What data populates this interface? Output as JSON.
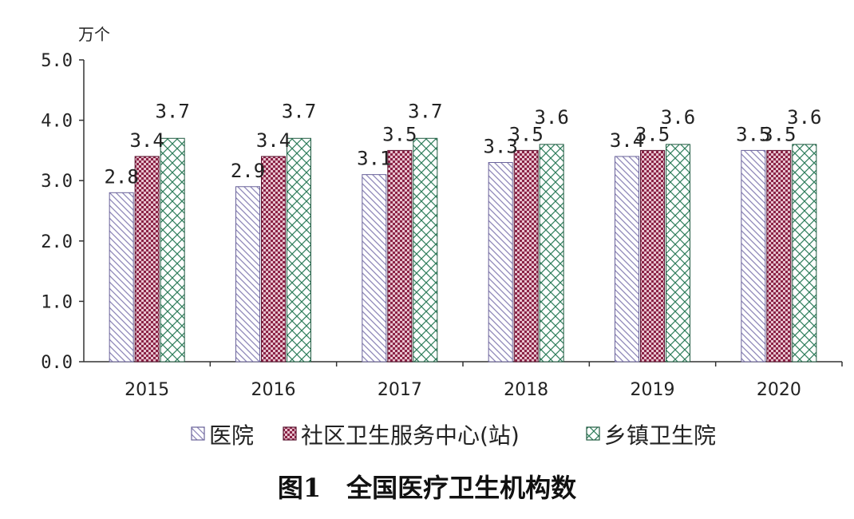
{
  "chart_data": {
    "type": "bar",
    "title": "图1　全国医疗卫生机构数",
    "ylabel": "万个",
    "xlabel": "",
    "ylim": [
      0,
      5
    ],
    "yticks": [
      "0.0",
      "1.0",
      "2.0",
      "3.0",
      "4.0",
      "5.0"
    ],
    "categories": [
      "2015",
      "2016",
      "2017",
      "2018",
      "2019",
      "2020"
    ],
    "legend_position": "bottom",
    "grid": false,
    "series": [
      {
        "name": "医院",
        "values": [
          2.8,
          2.9,
          3.1,
          3.3,
          3.4,
          3.5
        ],
        "labels": [
          "2.8",
          "2.9",
          "3.1",
          "3.3",
          "3.4",
          "3.5"
        ],
        "color": "#c8c4dc",
        "pattern": "diagonal-hatch"
      },
      {
        "name": "社区卫生服务中心(站)",
        "values": [
          3.4,
          3.4,
          3.5,
          3.5,
          3.5,
          3.5
        ],
        "labels": [
          "3.4",
          "3.4",
          "3.5",
          "3.5",
          "3.5",
          "3.5"
        ],
        "color": "#8b2346",
        "pattern": "checker"
      },
      {
        "name": "乡镇卫生院",
        "values": [
          3.7,
          3.7,
          3.7,
          3.6,
          3.6,
          3.6
        ],
        "labels": [
          "3.7",
          "3.7",
          "3.7",
          "3.6",
          "3.6",
          "3.6"
        ],
        "color": "#2e7d5b",
        "pattern": "crosshatch"
      }
    ]
  }
}
